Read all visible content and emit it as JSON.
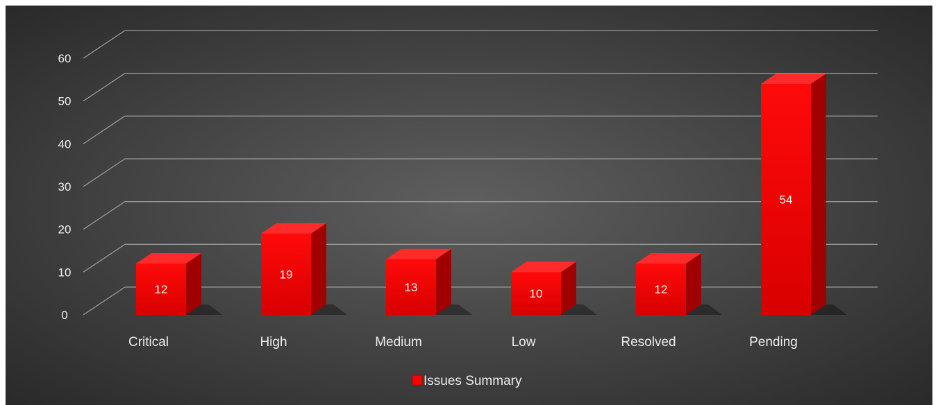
{
  "chart_data": {
    "type": "bar",
    "style": "3d-column",
    "categories": [
      "Critical",
      "High",
      "Medium",
      "Low",
      "Resolved",
      "Pending"
    ],
    "series": [
      {
        "name": "Issues Summary",
        "values": [
          12,
          19,
          13,
          10,
          12,
          54
        ]
      }
    ],
    "ylim": [
      0,
      60
    ],
    "yticks": [
      0,
      10,
      20,
      30,
      40,
      50,
      60
    ],
    "grid": true,
    "legend": "bottom",
    "data_labels": true,
    "colors": {
      "bar_front": "#ff0000",
      "bar_side": "#a00000",
      "bar_top": "#ff2a2a",
      "background_center": "#5f5f5f",
      "background_edge": "#262626",
      "grid": "#9a9a9a"
    }
  }
}
